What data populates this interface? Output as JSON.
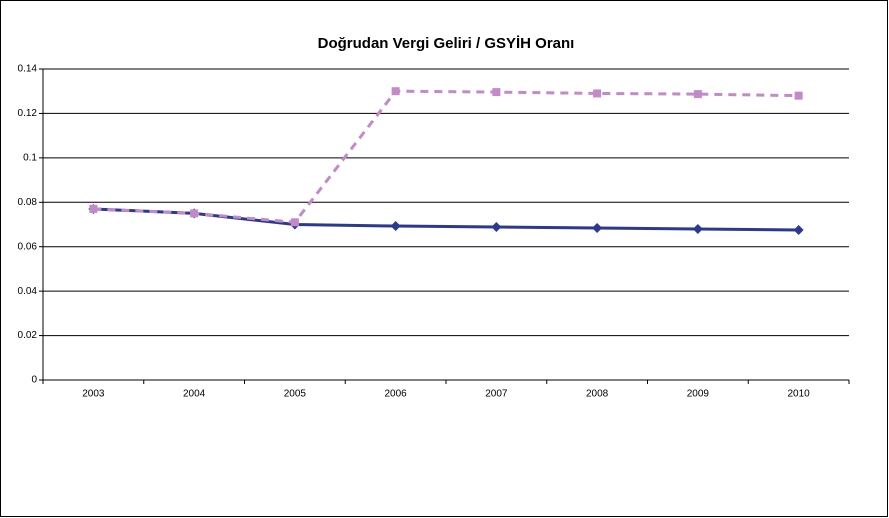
{
  "chart_data": {
    "type": "line",
    "title": "Doğrudan Vergi Geliri / GSYİH Oranı",
    "categories": [
      "2003",
      "2004",
      "2005",
      "2006",
      "2007",
      "2008",
      "2009",
      "2010"
    ],
    "series": [
      {
        "color": "#2b3990",
        "marker": "diamond",
        "dash": false,
        "values": [
          0.077,
          0.075,
          0.07,
          0.0693,
          0.0689,
          0.0684,
          0.068,
          0.0675
        ]
      },
      {
        "color": "#c389c9",
        "marker": "square",
        "dash": true,
        "values": [
          0.077,
          0.075,
          0.071,
          0.13,
          0.1296,
          0.129,
          0.1287,
          0.128
        ]
      }
    ],
    "ylim": [
      0,
      0.14
    ],
    "yticks": [
      0,
      0.02,
      0.04,
      0.06,
      0.08,
      0.1,
      0.12,
      0.14
    ],
    "grid": true
  }
}
